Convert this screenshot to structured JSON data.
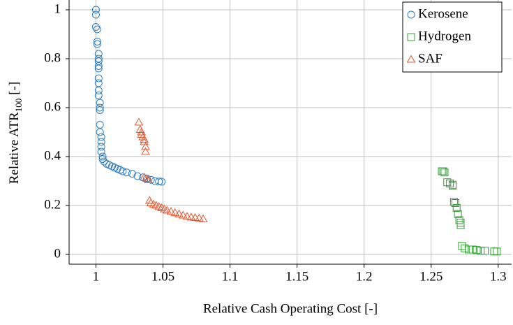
{
  "chart_data": {
    "type": "scatter",
    "x_label": "Relative Cash Operating Cost [-]",
    "y_label_parts": [
      "Relative ATR",
      "100",
      "[-]"
    ],
    "xlim": [
      0.98,
      1.31
    ],
    "ylim": [
      -0.04,
      1.04
    ],
    "xticks": [
      1,
      1.05,
      1.1,
      1.15,
      1.2,
      1.25,
      1.3
    ],
    "yticks": [
      0,
      0.2,
      0.4,
      0.6,
      0.8,
      1
    ],
    "grid": true,
    "legend": "upper right",
    "series": [
      {
        "name": "Kerosene",
        "color": "#2f7fc1",
        "marker": "circle",
        "x": [
          1.0,
          1.0,
          1.0,
          1.001,
          1.001,
          1.001,
          1.002,
          1.002,
          1.002,
          1.002,
          1.002,
          1.002,
          1.002,
          1.002,
          1.002,
          1.003,
          1.003,
          1.003,
          1.003,
          1.003,
          1.004,
          1.004,
          1.004,
          1.004,
          1.005,
          1.005,
          1.006,
          1.008,
          1.01,
          1.012,
          1.014,
          1.016,
          1.018,
          1.02,
          1.023,
          1.027,
          1.031,
          1.035,
          1.038,
          1.041,
          1.044,
          1.047,
          1.049
        ],
        "values": [
          1.0,
          0.98,
          0.93,
          0.92,
          0.87,
          0.86,
          0.82,
          0.8,
          0.79,
          0.77,
          0.76,
          0.72,
          0.7,
          0.67,
          0.65,
          0.62,
          0.6,
          0.59,
          0.53,
          0.5,
          0.48,
          0.46,
          0.44,
          0.42,
          0.4,
          0.39,
          0.38,
          0.37,
          0.365,
          0.36,
          0.355,
          0.35,
          0.345,
          0.34,
          0.335,
          0.33,
          0.32,
          0.315,
          0.31,
          0.305,
          0.3,
          0.298,
          0.297
        ]
      },
      {
        "name": "Hydrogen",
        "color": "#2ca02c",
        "marker": "square",
        "x": [
          1.258,
          1.259,
          1.26,
          1.262,
          1.264,
          1.266,
          1.266,
          1.267,
          1.268,
          1.269,
          1.27,
          1.271,
          1.272,
          1.272,
          1.273,
          1.275,
          1.278,
          1.281,
          1.284,
          1.287,
          1.29,
          1.297,
          1.299
        ],
        "values": [
          0.34,
          0.34,
          0.335,
          0.295,
          0.29,
          0.285,
          0.28,
          0.215,
          0.21,
          0.19,
          0.165,
          0.14,
          0.13,
          0.12,
          0.035,
          0.025,
          0.02,
          0.02,
          0.018,
          0.015,
          0.015,
          0.012,
          0.012
        ]
      },
      {
        "name": "SAF",
        "color": "#e4572e",
        "marker": "triangle",
        "x": [
          1.032,
          1.033,
          1.034,
          1.034,
          1.035,
          1.036,
          1.036,
          1.037,
          1.037,
          1.036,
          1.038,
          1.039,
          1.04,
          1.041,
          1.043,
          1.045,
          1.047,
          1.049,
          1.051,
          1.053,
          1.056,
          1.059,
          1.062,
          1.065,
          1.068,
          1.071,
          1.074,
          1.077,
          1.08
        ],
        "values": [
          0.54,
          0.51,
          0.5,
          0.49,
          0.48,
          0.47,
          0.46,
          0.44,
          0.42,
          0.315,
          0.31,
          0.305,
          0.22,
          0.21,
          0.205,
          0.2,
          0.195,
          0.19,
          0.185,
          0.18,
          0.175,
          0.17,
          0.165,
          0.16,
          0.155,
          0.152,
          0.15,
          0.148,
          0.145
        ]
      }
    ]
  }
}
